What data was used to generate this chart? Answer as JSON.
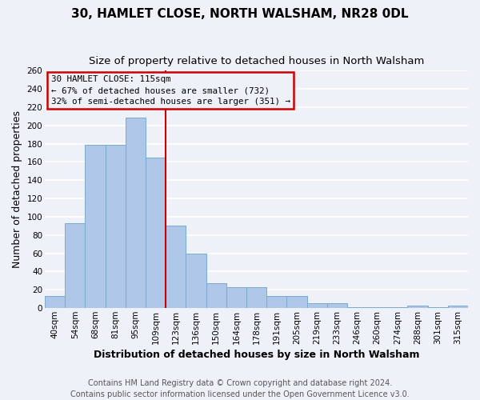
{
  "title": "30, HAMLET CLOSE, NORTH WALSHAM, NR28 0DL",
  "subtitle": "Size of property relative to detached houses in North Walsham",
  "xlabel": "Distribution of detached houses by size in North Walsham",
  "ylabel": "Number of detached properties",
  "footer_line1": "Contains HM Land Registry data © Crown copyright and database right 2024.",
  "footer_line2": "Contains public sector information licensed under the Open Government Licence v3.0.",
  "bin_labels": [
    "40sqm",
    "54sqm",
    "68sqm",
    "81sqm",
    "95sqm",
    "109sqm",
    "123sqm",
    "136sqm",
    "150sqm",
    "164sqm",
    "178sqm",
    "191sqm",
    "205sqm",
    "219sqm",
    "233sqm",
    "246sqm",
    "260sqm",
    "274sqm",
    "288sqm",
    "301sqm",
    "315sqm"
  ],
  "bar_heights": [
    13,
    93,
    179,
    179,
    209,
    165,
    90,
    60,
    27,
    23,
    23,
    13,
    13,
    5,
    5,
    1,
    1,
    1,
    3,
    1,
    3
  ],
  "bar_color": "#aec6e8",
  "bar_edge_color": "#7aaad0",
  "annotation_box_text": "30 HAMLET CLOSE: 115sqm\n← 67% of detached houses are smaller (732)\n32% of semi-detached houses are larger (351) →",
  "annotation_box_edge_color": "#cc0000",
  "vline_color": "#cc0000",
  "vline_x": 6.0,
  "ylim": [
    0,
    260
  ],
  "yticks": [
    0,
    20,
    40,
    60,
    80,
    100,
    120,
    140,
    160,
    180,
    200,
    220,
    240,
    260
  ],
  "background_color": "#eef2f8",
  "grid_color": "#ffffff",
  "title_fontsize": 11,
  "subtitle_fontsize": 9.5,
  "axis_label_fontsize": 9,
  "tick_fontsize": 7.5,
  "footer_fontsize": 7
}
